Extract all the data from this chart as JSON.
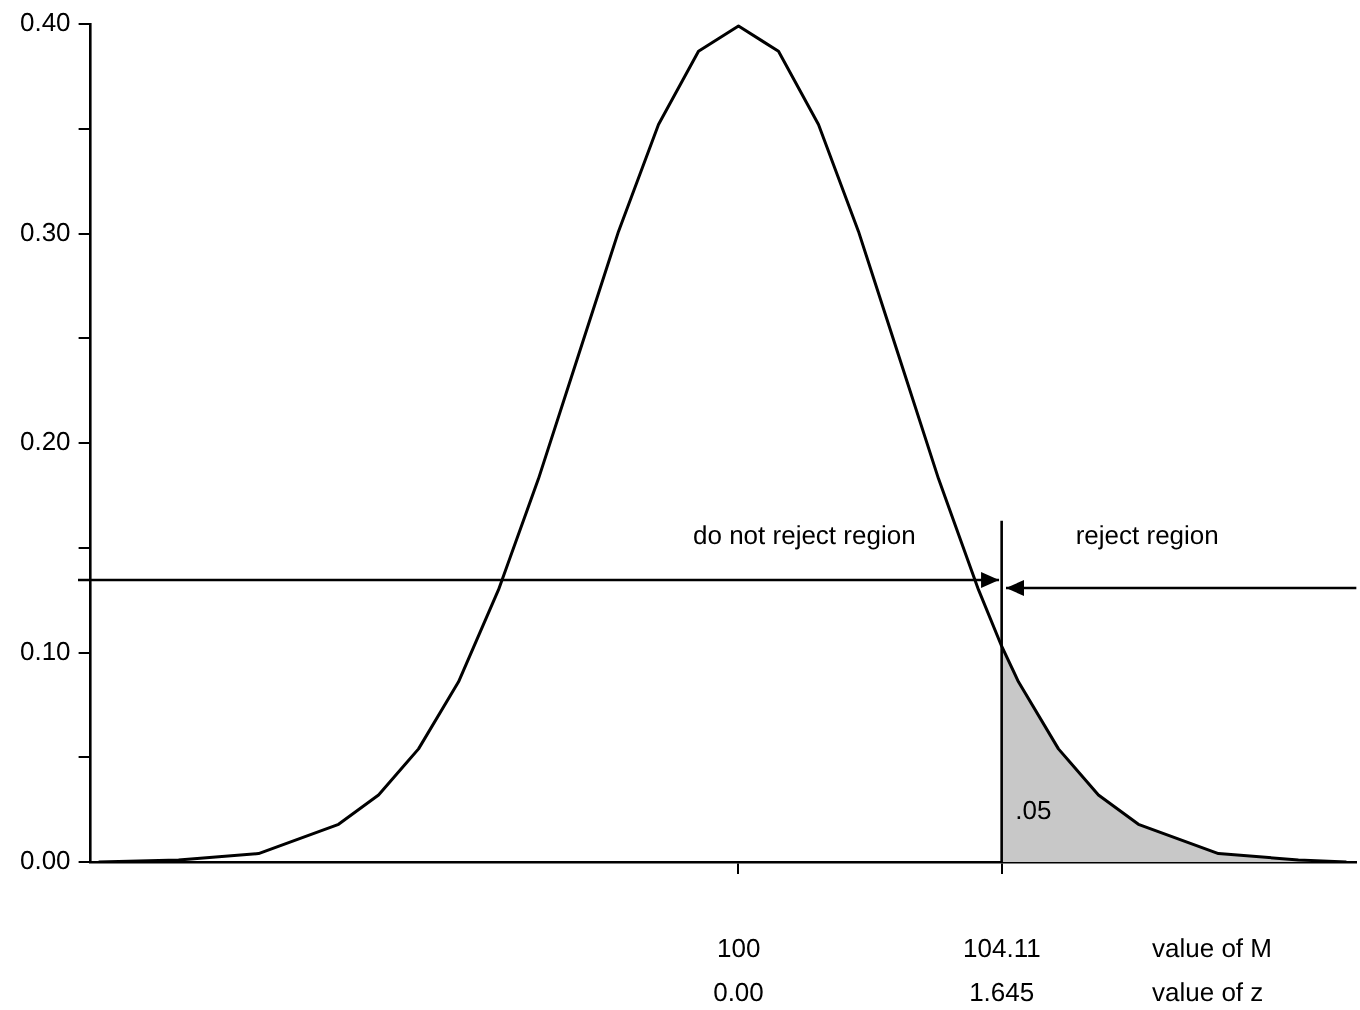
{
  "chart_data": {
    "type": "line",
    "xlim": [
      -4.05,
      3.86
    ],
    "xticks": [
      {
        "value": 0,
        "label": "0.00"
      },
      {
        "value": 1.645,
        "label": "1.645"
      }
    ],
    "xlabel": "value of z",
    "x2lim": [
      89.88,
      109.64
    ],
    "x2ticks": [
      100,
      104.11
    ],
    "x2label": "value of M",
    "ylim": [
      0,
      0.4
    ],
    "yticks": [
      {
        "value": 0,
        "label": "0.00"
      },
      {
        "value": 0.05,
        "label": null
      },
      {
        "value": 0.1,
        "label": "0.10"
      },
      {
        "value": 0.15,
        "label": null
      },
      {
        "value": 0.2,
        "label": "0.20"
      },
      {
        "value": 0.25,
        "label": null
      },
      {
        "value": 0.3,
        "label": "0.30"
      },
      {
        "value": 0.35,
        "label": null
      },
      {
        "value": 0.4,
        "label": "0.40"
      }
    ],
    "series": [
      {
        "type": "area",
        "color": "#c8c8c8",
        "x": [
          1.645,
          1.75,
          2,
          2.25,
          2.5,
          3,
          3.5,
          3.8
        ],
        "values": [
          0.103,
          0.086,
          0.054,
          0.032,
          0.018,
          0.004,
          0.001,
          0
        ]
      },
      {
        "type": "line",
        "color": "#000000",
        "x": [
          -4,
          -3.5,
          -3,
          -2.5,
          -2.25,
          -2,
          -1.75,
          -1.5,
          -1.25,
          -1,
          -0.75,
          -0.5,
          -0.25,
          0,
          0.25,
          0.5,
          0.75,
          1,
          1.25,
          1.5,
          1.645,
          1.75,
          2,
          2.25,
          2.5,
          3,
          3.5,
          3.8
        ],
        "values": [
          0,
          0.001,
          0.004,
          0.018,
          0.032,
          0.054,
          0.086,
          0.13,
          0.183,
          0.242,
          0.301,
          0.352,
          0.387,
          0.399,
          0.387,
          0.352,
          0.301,
          0.242,
          0.183,
          0.13,
          0.103,
          0.086,
          0.054,
          0.032,
          0.018,
          0.004,
          0.001,
          0
        ]
      }
    ],
    "ref_lines": [
      {
        "axis": "x",
        "value": 1.645
      }
    ],
    "annotations": [
      "do not reject region",
      "reject region",
      ".05"
    ],
    "grid": false,
    "legend": false,
    "marker": "none",
    "line_style": "solid"
  }
}
